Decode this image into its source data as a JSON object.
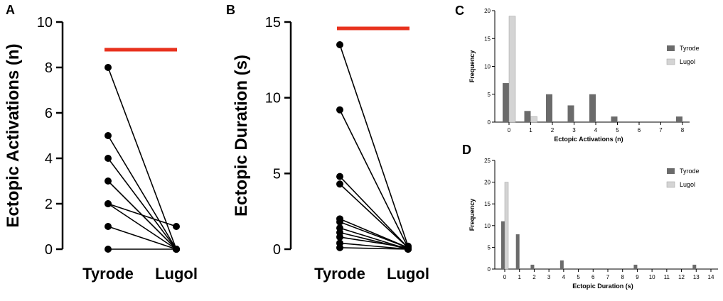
{
  "chart_data": [
    {
      "panel": "A",
      "type": "line",
      "subtype": "paired-dot",
      "categories": [
        "Tyrode",
        "Lugol"
      ],
      "ylabel": "Ectopic Activations (n)",
      "ylim": [
        0,
        10
      ],
      "yticks": [
        0,
        2,
        4,
        6,
        8,
        10
      ],
      "pairs": [
        [
          8,
          0
        ],
        [
          5,
          0
        ],
        [
          4,
          0
        ],
        [
          3,
          0
        ],
        [
          2,
          0
        ],
        [
          2,
          1
        ],
        [
          1,
          0
        ],
        [
          0,
          0
        ]
      ],
      "significance_bar": true,
      "colors": {
        "points": "#000000",
        "significance": "#e8321e"
      }
    },
    {
      "panel": "B",
      "type": "line",
      "subtype": "paired-dot",
      "categories": [
        "Tyrode",
        "Lugol"
      ],
      "ylabel": "Ectopic Duration (s)",
      "ylim": [
        0,
        15
      ],
      "yticks": [
        0,
        5,
        10,
        15
      ],
      "pairs": [
        [
          13.5,
          0.2
        ],
        [
          9.2,
          0.1
        ],
        [
          4.8,
          0.1
        ],
        [
          4.3,
          0.1
        ],
        [
          2.0,
          0.1
        ],
        [
          1.8,
          0.1
        ],
        [
          1.4,
          0
        ],
        [
          1.1,
          0
        ],
        [
          0.8,
          0.1
        ],
        [
          0.4,
          0
        ],
        [
          0.1,
          0
        ]
      ],
      "significance_bar": true,
      "colors": {
        "points": "#000000",
        "significance": "#e8321e"
      }
    },
    {
      "panel": "C",
      "type": "bar",
      "xlabel": "Ectopic Activations (n)",
      "ylabel": "Frequency",
      "ylim": [
        0,
        20
      ],
      "yticks": [
        0,
        5,
        10,
        15,
        20
      ],
      "categories": [
        "0",
        "1",
        "2",
        "3",
        "4",
        "5",
        "6",
        "7",
        "8"
      ],
      "series": [
        {
          "name": "Tyrode",
          "values": [
            7,
            2,
            5,
            3,
            5,
            1,
            0,
            0,
            1
          ],
          "color": "#6b6b6b"
        },
        {
          "name": "Lugol",
          "values": [
            19,
            1,
            0,
            0,
            0,
            0,
            0,
            0,
            0
          ],
          "color": "#d4d4d4"
        }
      ],
      "legend": "top-right"
    },
    {
      "panel": "D",
      "type": "bar",
      "xlabel": "Ectopic Duration (s)",
      "ylabel": "Frequency",
      "ylim": [
        0,
        25
      ],
      "yticks": [
        0,
        5,
        10,
        15,
        20,
        25
      ],
      "categories": [
        "0",
        "1",
        "2",
        "3",
        "4",
        "5",
        "6",
        "7",
        "8",
        "9",
        "10",
        "11",
        "12",
        "13",
        "14"
      ],
      "series": [
        {
          "name": "Tyrode",
          "values": [
            11,
            8,
            1,
            0,
            2,
            0,
            0,
            0,
            0,
            1,
            0,
            0,
            0,
            1,
            0
          ],
          "color": "#6b6b6b"
        },
        {
          "name": "Lugol",
          "values": [
            20,
            0,
            0,
            0,
            0,
            0,
            0,
            0,
            0,
            0,
            0,
            0,
            0,
            0,
            0
          ],
          "color": "#d4d4d4"
        }
      ],
      "legend": "top-right"
    }
  ]
}
